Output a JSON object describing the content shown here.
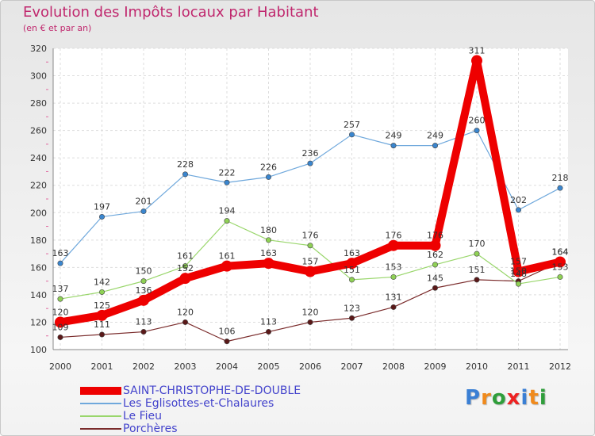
{
  "chart_data": {
    "type": "line",
    "title": "Evolution des Impôts locaux par Habitant",
    "subtitle": "(en € et par an)",
    "xlabel": "",
    "ylabel": "",
    "ylim": [
      100,
      320
    ],
    "yticks": [
      100,
      120,
      140,
      160,
      180,
      200,
      220,
      240,
      260,
      280,
      300,
      320
    ],
    "x": [
      "2000",
      "2001",
      "2002",
      "2003",
      "2004",
      "2005",
      "2006",
      "2007",
      "2008",
      "2009",
      "2010",
      "2011",
      "2012"
    ],
    "series": [
      {
        "name": "SAINT-CHRISTOPHE-DE-DOUBLE",
        "color": "#ee0000",
        "values": [
          120,
          125,
          136,
          152,
          161,
          163,
          157,
          163,
          176,
          176,
          311,
          157,
          164
        ]
      },
      {
        "name": "Les Eglisottes-et-Chalaures",
        "color": "#6fa8dc",
        "values": [
          163,
          197,
          201,
          228,
          222,
          226,
          236,
          257,
          249,
          249,
          260,
          202,
          218
        ]
      },
      {
        "name": "Le Fieu",
        "color": "#99d66b",
        "values": [
          137,
          142,
          150,
          161,
          194,
          180,
          176,
          151,
          153,
          162,
          170,
          148,
          153
        ]
      },
      {
        "name": "Porchères",
        "color": "#7a2b2b",
        "values": [
          109,
          111,
          113,
          120,
          106,
          113,
          120,
          123,
          131,
          145,
          151,
          150,
          164
        ]
      }
    ],
    "legend_position": "bottom-left"
  },
  "brand": {
    "text": "Proxiti",
    "colors": [
      "#3a7fd4",
      "#f08a1c",
      "#2f9e3b",
      "#ee2222",
      "#3a7fd4",
      "#f08a1c",
      "#2f9e3b"
    ]
  }
}
